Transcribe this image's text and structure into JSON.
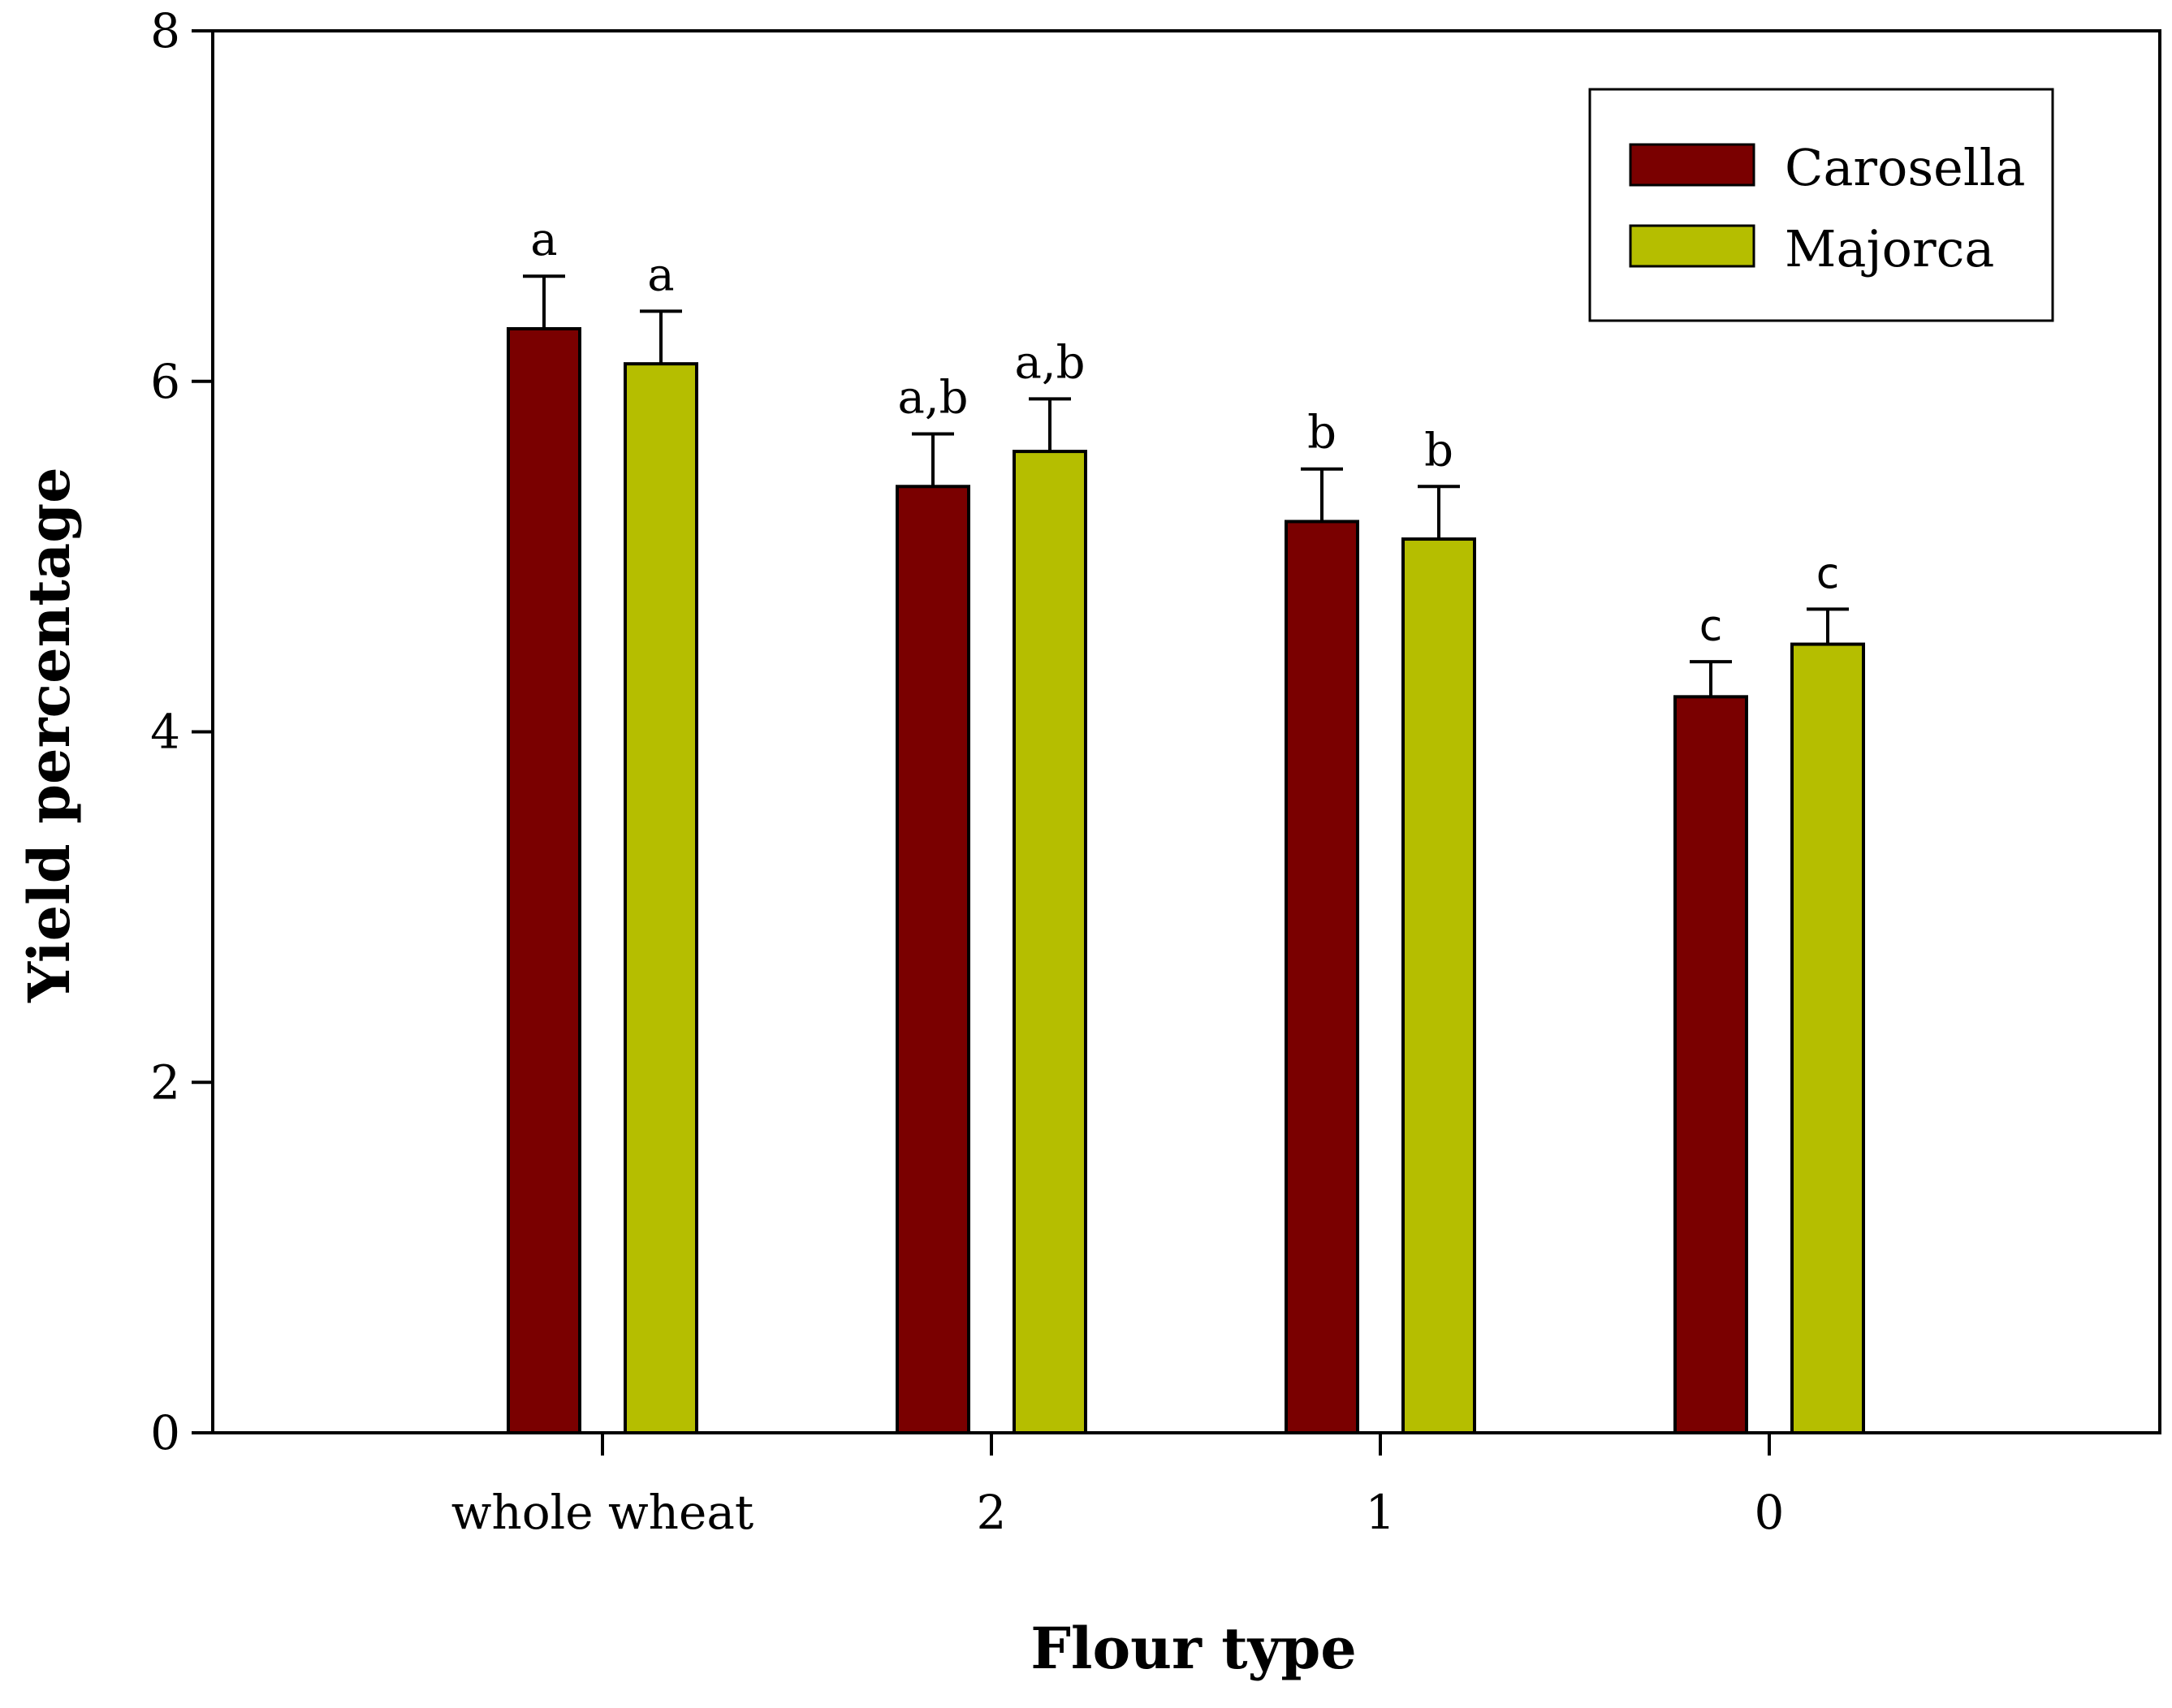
{
  "chart_data": {
    "type": "bar",
    "categories": [
      "whole wheat",
      "2",
      "1",
      "0"
    ],
    "series": [
      {
        "name": "Carosella",
        "color": "#7a0000",
        "values": [
          6.3,
          5.4,
          5.2,
          4.2
        ],
        "errors": [
          0.3,
          0.3,
          0.3,
          0.2
        ],
        "labels": [
          "a",
          "a,b",
          "b",
          "c"
        ]
      },
      {
        "name": "Majorca",
        "color": "#b5be00",
        "values": [
          6.1,
          5.6,
          5.1,
          4.5
        ],
        "errors": [
          0.3,
          0.3,
          0.3,
          0.2
        ],
        "labels": [
          "a",
          "a,b",
          "b",
          "c"
        ]
      }
    ],
    "xlabel": "Flour type",
    "ylabel": "Yield percentage",
    "ylim": [
      0,
      8
    ],
    "yticks": [
      0,
      2,
      4,
      6,
      8
    ],
    "legend": "top-right",
    "grid": false
  }
}
